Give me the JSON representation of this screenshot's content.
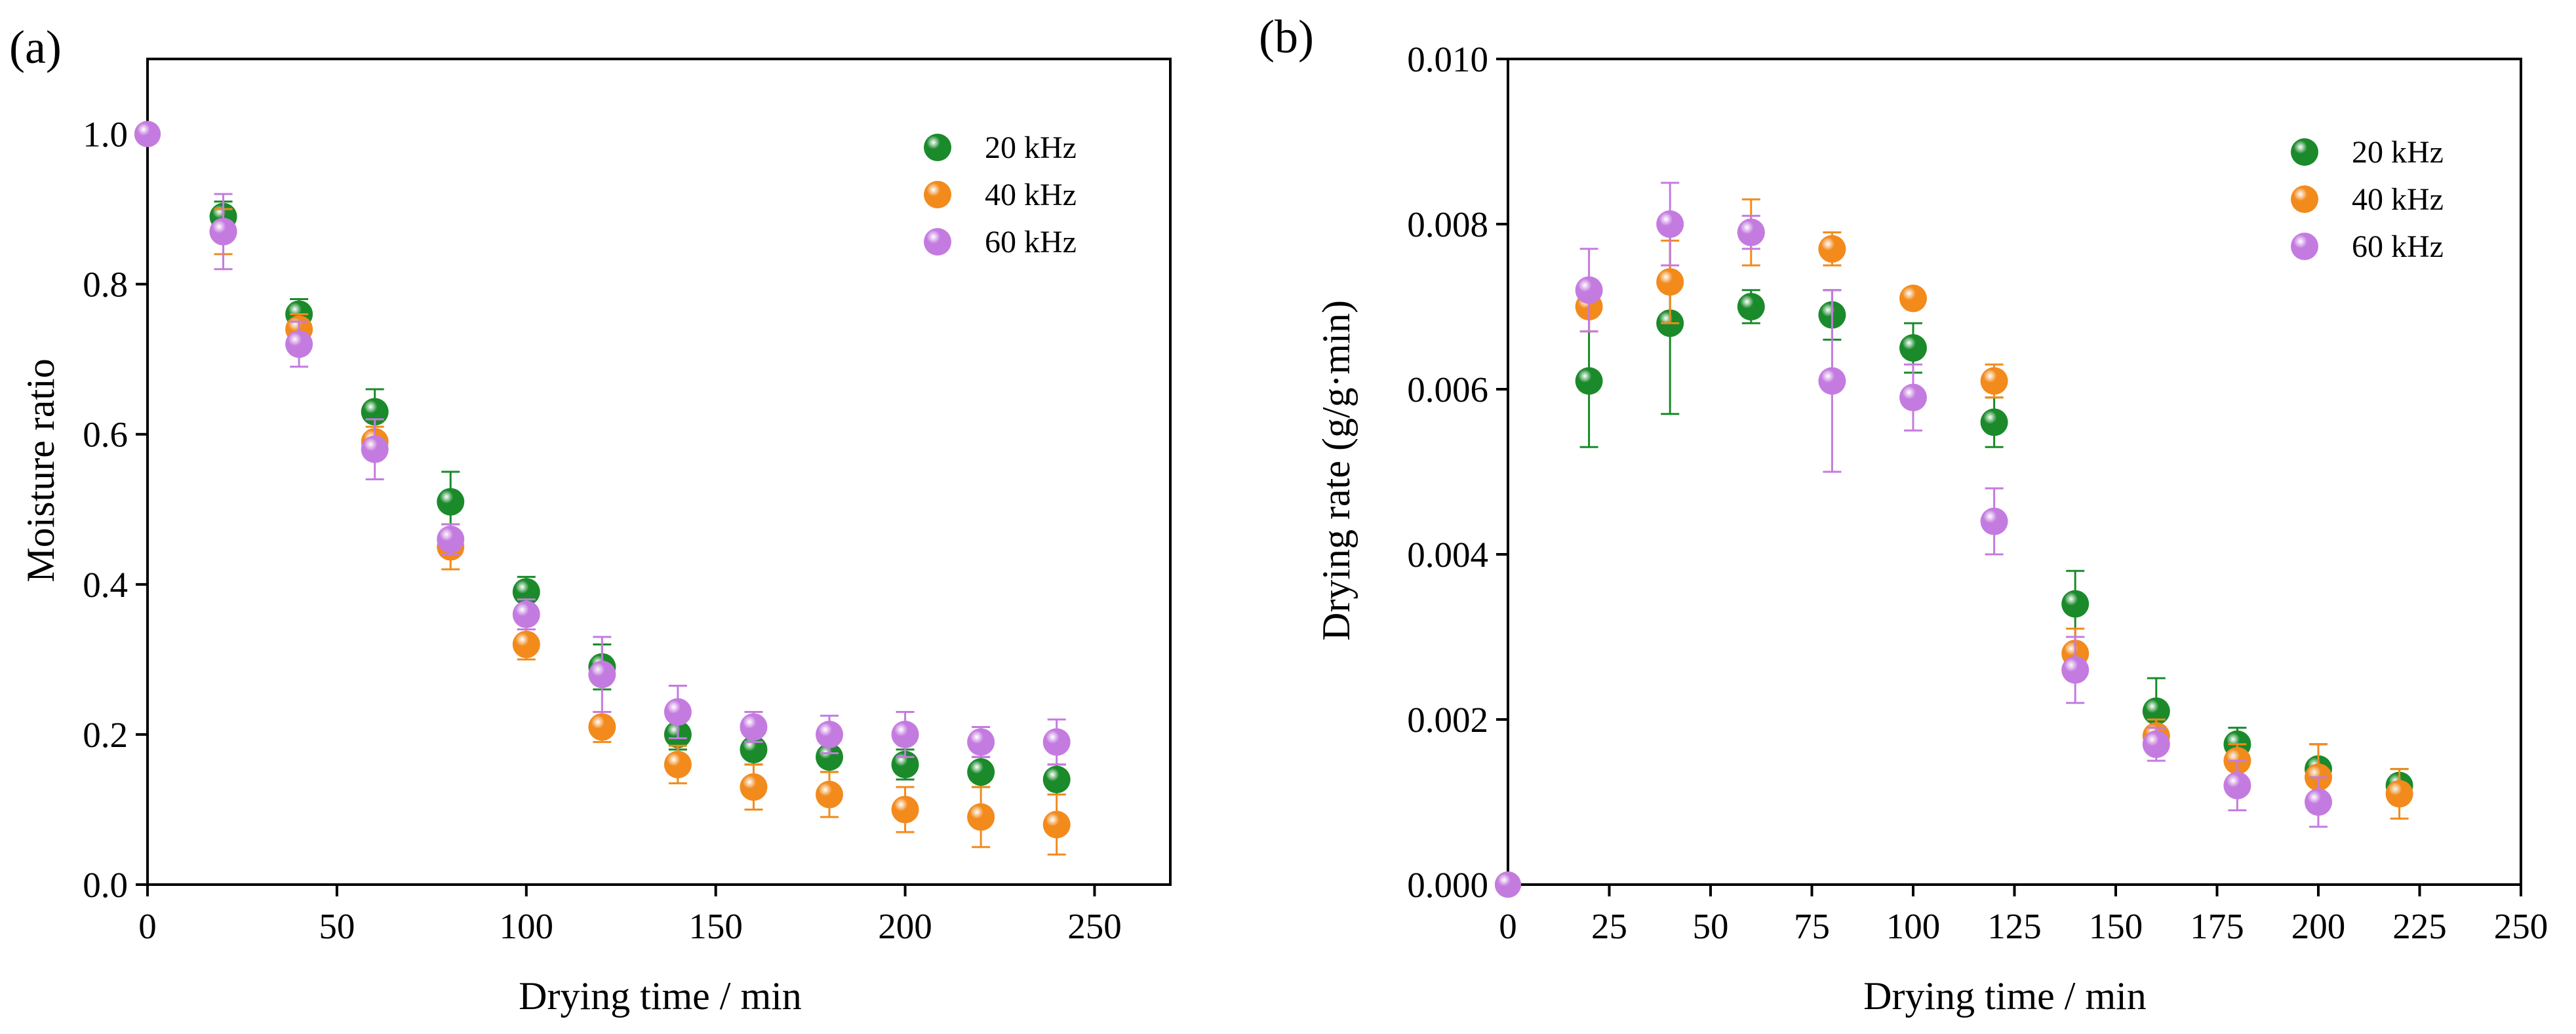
{
  "colors": {
    "20 kHz": "#1a8a2a",
    "40 kHz": "#f28a1c",
    "60 kHz": "#c47be0"
  },
  "chart_data": [
    {
      "panel_label": "(a)",
      "type": "scatter",
      "title": "",
      "xlabel": "Drying time / min",
      "ylabel": "Moisture ratio",
      "xlim": [
        0,
        270
      ],
      "ylim": [
        0,
        1.1
      ],
      "xticks": [
        0,
        50,
        100,
        150,
        200,
        250
      ],
      "yticks": [
        0.0,
        0.2,
        0.4,
        0.6,
        0.8,
        1.0
      ],
      "ytick_labels": [
        "0.0",
        "0.2",
        "0.4",
        "0.6",
        "0.8",
        "1.0"
      ],
      "xtick_labels": [
        "0",
        "50",
        "100",
        "150",
        "200",
        "250"
      ],
      "legend": "top-right",
      "series": [
        {
          "name": "20 kHz",
          "x": [
            0,
            20,
            40,
            60,
            80,
            100,
            120,
            140,
            160,
            180,
            200,
            220,
            240
          ],
          "y": [
            1.0,
            0.89,
            0.76,
            0.63,
            0.51,
            0.39,
            0.29,
            0.2,
            0.18,
            0.17,
            0.16,
            0.15,
            0.14
          ],
          "err": [
            0,
            0.02,
            0.02,
            0.03,
            0.04,
            0.02,
            0.03,
            0.02,
            0.02,
            0.02,
            0.02,
            0.02,
            0.02
          ]
        },
        {
          "name": "40 kHz",
          "x": [
            0,
            20,
            40,
            60,
            80,
            100,
            120,
            140,
            160,
            180,
            200,
            220,
            240
          ],
          "y": [
            1.0,
            0.87,
            0.74,
            0.59,
            0.45,
            0.32,
            0.21,
            0.16,
            0.13,
            0.12,
            0.1,
            0.09,
            0.08
          ],
          "err": [
            0,
            0.03,
            0.02,
            0.02,
            0.03,
            0.02,
            0.02,
            0.025,
            0.03,
            0.03,
            0.03,
            0.04,
            0.04
          ]
        },
        {
          "name": "60 kHz",
          "x": [
            0,
            20,
            40,
            60,
            80,
            100,
            120,
            140,
            160,
            180,
            200,
            220,
            240
          ],
          "y": [
            1.0,
            0.87,
            0.72,
            0.58,
            0.46,
            0.36,
            0.28,
            0.23,
            0.21,
            0.2,
            0.2,
            0.19,
            0.19
          ],
          "err": [
            0,
            0.05,
            0.03,
            0.04,
            0.02,
            0.02,
            0.05,
            0.035,
            0.02,
            0.025,
            0.03,
            0.02,
            0.03
          ]
        }
      ]
    },
    {
      "panel_label": "(b)",
      "type": "scatter",
      "title": "",
      "xlabel": "Drying time / min",
      "ylabel": "Drying rate (g/g·min)",
      "xlim": [
        0,
        250
      ],
      "ylim": [
        0,
        0.01
      ],
      "xticks": [
        0,
        25,
        50,
        75,
        100,
        125,
        150,
        175,
        200,
        225,
        250
      ],
      "yticks": [
        0.0,
        0.002,
        0.004,
        0.006,
        0.008,
        0.01
      ],
      "ytick_labels": [
        "0.000",
        "0.002",
        "0.004",
        "0.006",
        "0.008",
        "0.010"
      ],
      "xtick_labels": [
        "0",
        "25",
        "50",
        "75",
        "100",
        "125",
        "150",
        "175",
        "200",
        "225",
        "250"
      ],
      "legend": "top-right",
      "series": [
        {
          "name": "20 kHz",
          "x": [
            0,
            20,
            40,
            60,
            80,
            100,
            120,
            140,
            160,
            180,
            200,
            220
          ],
          "y": [
            0,
            0.0061,
            0.0068,
            0.007,
            0.0069,
            0.0065,
            0.0056,
            0.0034,
            0.0021,
            0.0017,
            0.0014,
            0.0012
          ],
          "err": [
            0,
            0.0008,
            0.0011,
            0.0002,
            0.0003,
            0.0003,
            0.0003,
            0.0004,
            0.0004,
            0.0002,
            0.0003,
            0.0002
          ]
        },
        {
          "name": "40 kHz",
          "x": [
            0,
            20,
            40,
            60,
            80,
            100,
            120,
            140,
            160,
            180,
            200,
            220
          ],
          "y": [
            0,
            0.007,
            0.0073,
            0.0079,
            0.0077,
            0.0071,
            0.0061,
            0.0028,
            0.0018,
            0.0015,
            0.0013,
            0.0011
          ],
          "err": [
            0,
            0.0003,
            0.0005,
            0.0004,
            0.0002,
            0.0001,
            0.0002,
            0.0003,
            0.0002,
            0.0002,
            0.0004,
            0.0003
          ]
        },
        {
          "name": "60 kHz",
          "x": [
            0,
            20,
            40,
            60,
            80,
            100,
            120,
            140,
            160,
            180,
            200,
            220
          ],
          "y": [
            0,
            0.0072,
            0.008,
            0.0079,
            0.0061,
            0.0059,
            0.0044,
            0.0026,
            0.0017,
            0.0012,
            0.001,
            null
          ],
          "err": [
            0,
            0.0005,
            0.0005,
            0.0002,
            0.0011,
            0.0004,
            0.0004,
            0.0004,
            0.0002,
            0.0003,
            0.0003,
            0
          ]
        }
      ]
    }
  ]
}
